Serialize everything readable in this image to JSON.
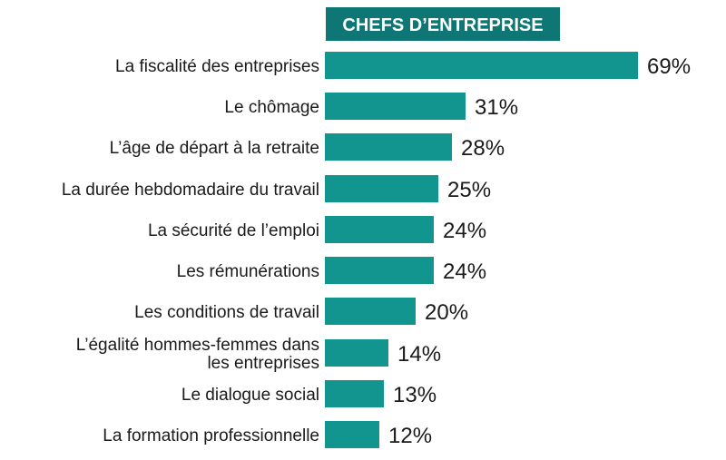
{
  "chart_data": {
    "type": "bar",
    "orientation": "horizontal",
    "title": "CHEFS D’ENTREPRISE",
    "categories": [
      [
        "La fiscalité des entreprises"
      ],
      [
        "Le chômage"
      ],
      [
        "L’âge de départ à la retraite"
      ],
      [
        "La durée hebdomadaire du travail"
      ],
      [
        "La sécurité de l’emploi"
      ],
      [
        "Les rémunérations"
      ],
      [
        "Les conditions de travail"
      ],
      [
        "L’égalité hommes-femmes dans",
        "les entreprises"
      ],
      [
        "Le dialogue social"
      ],
      [
        "La formation professionnelle"
      ]
    ],
    "values": [
      69,
      31,
      28,
      25,
      24,
      24,
      20,
      14,
      13,
      12
    ],
    "value_labels": [
      "69%",
      "31%",
      "28%",
      "25%",
      "24%",
      "24%",
      "20%",
      "14%",
      "13%",
      "12%"
    ],
    "unit": "%",
    "xlim": [
      0,
      69
    ],
    "grid": false,
    "legend": "none"
  },
  "colors": {
    "bar": "#12948f",
    "header_bg": "#0e7675",
    "header_text": "#ffffff"
  }
}
